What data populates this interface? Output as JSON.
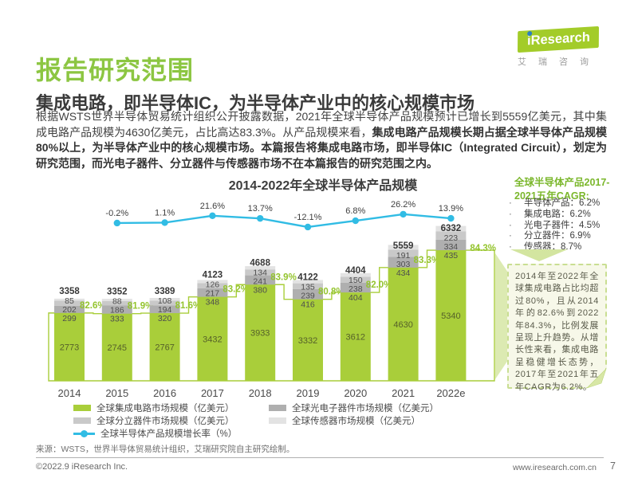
{
  "header": {
    "title": "报告研究范围",
    "subtitle": "集成电路，即半导体IC，为半导体产业中的核心规模市场",
    "logo": {
      "i": "i",
      "name": "Research",
      "tagline": "艾瑞咨询"
    }
  },
  "intro": {
    "normal": "根据WSTS世界半导体贸易统计组织公开披露数据，2021年全球半导体产品规模预计已增长到5559亿美元，其中集成电路产品规模为4630亿美元，占比高达83.3%。从产品规模来看，",
    "bold": "集成电路产品规模长期占据全球半导体产品规模80%以上，为半导体产业中的核心规模市场。本篇报告将集成电路市场，即半导体IC（Integrated Circuit），划定为研究范围，而光电子器件、分立器件与传感器市场不在本篇报告的研究范围之内。"
  },
  "chart_data": {
    "type": "bar",
    "subtype": "stacked-bars-with-growth-line",
    "title": "2014-2022年全球半导体产品规模",
    "unit": "亿美元",
    "categories": [
      "2014",
      "2015",
      "2016",
      "2017",
      "2018",
      "2019",
      "2020",
      "2021",
      "2022e"
    ],
    "series": [
      {
        "name": "全球集成电路市场规模（亿美元）",
        "color": "#a9ce3a",
        "values": [
          2773,
          2745,
          2767,
          3432,
          3933,
          3332,
          3612,
          4630,
          5340
        ]
      },
      {
        "name": "全球光电子器件市场规模（亿美元）",
        "color": "#afafaf",
        "values": [
          299,
          333,
          320,
          348,
          380,
          416,
          404,
          434,
          435
        ]
      },
      {
        "name": "全球分立器件市场规模（亿美元）",
        "color": "#c9c9c9",
        "values": [
          202,
          186,
          194,
          217,
          241,
          239,
          238,
          303,
          334
        ]
      },
      {
        "name": "全球传感器市场规模（亿美元）",
        "color": "#e3e3e3",
        "values": [
          85,
          88,
          108,
          126,
          134,
          135,
          150,
          191,
          223
        ]
      }
    ],
    "totals": [
      3358,
      3352,
      3389,
      4123,
      4688,
      4122,
      4404,
      5559,
      6332
    ],
    "ic_share_labels": [
      "82.6%",
      "81.9%",
      "81.6%",
      "83.2%",
      "83.9%",
      "80.8%",
      "82.0%",
      "83.3%",
      "84.3%"
    ],
    "growth_line": {
      "name": "全球半导体产品规模增长率（%）",
      "color": "#31bce4",
      "x": [
        "2015",
        "2016",
        "2017",
        "2018",
        "2019",
        "2020",
        "2021",
        "2022e"
      ],
      "values": [
        -0.2,
        1.1,
        21.6,
        13.7,
        -12.1,
        6.8,
        26.2,
        13.9
      ],
      "labels": [
        "-0.2%",
        "1.1%",
        "21.6%",
        "13.7%",
        "-12.1%",
        "6.8%",
        "26.2%",
        "13.9%"
      ]
    },
    "ylim": [
      0,
      7000
    ],
    "grid": false,
    "legend_position": "bottom"
  },
  "legend": {
    "items": [
      {
        "label": "全球集成电路市场规模（亿美元）",
        "marker": "swatch",
        "color": "#a9ce3a",
        "col": 0,
        "row": 0
      },
      {
        "label": "全球光电子器件市场规模（亿美元）",
        "marker": "swatch",
        "color": "#afafaf",
        "col": 1,
        "row": 0
      },
      {
        "label": "全球分立器件市场规模（亿美元）",
        "marker": "swatch",
        "color": "#c9c9c9",
        "col": 0,
        "row": 1
      },
      {
        "label": "全球传感器市场规模（亿美元）",
        "marker": "swatch",
        "color": "#e3e3e3",
        "col": 1,
        "row": 1
      },
      {
        "label": "全球半导体产品规模增长率（%）",
        "marker": "line",
        "color": "#31bce4",
        "col": 0,
        "row": 2
      }
    ]
  },
  "sidebar": {
    "cagr_heading": "全球半导体产品2017-2021五年CAGR:",
    "cagr_items": [
      "半导体产品：6.2%",
      "集成电路：6.2%",
      "光电子器件：4.5%",
      "分立器件：6.9%",
      "传感器：8.7%"
    ],
    "note": "2014年至2022年全球集成电路占比均超过80%，且从2014年的82.6%到2022年84.3%，比例发展呈现上升趋势。从增长性来看，集成电路呈稳健增长态势，2017年至2021年五年CAGR为6.2%。"
  },
  "source": "来源：WSTS，世界半导体贸易统计组织，艾瑞研究院自主研究绘制。",
  "footer": {
    "copyright": "©2022.9 iResearch Inc.",
    "website": "www.iresearch.com.cn",
    "page": "7"
  }
}
